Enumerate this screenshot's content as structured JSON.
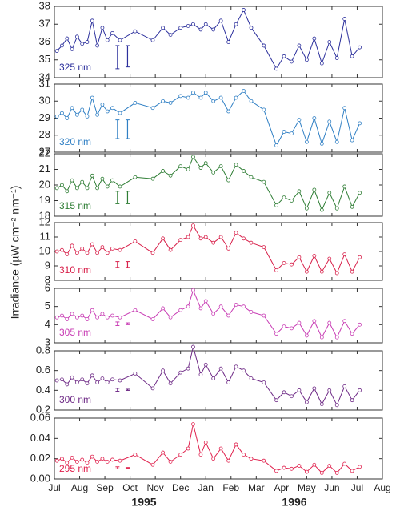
{
  "figure": {
    "ylabel": "Irradiance (µW cm⁻² nm⁻¹)",
    "year_labels": [
      "1995",
      "1996"
    ]
  },
  "chart_data": [
    {
      "type": "line",
      "label": "325 nm",
      "color": "#2b2f9c",
      "xlim": [
        0,
        13
      ],
      "ylim": [
        34,
        38
      ],
      "yticks": [
        34,
        35,
        36,
        37,
        38
      ],
      "x": [
        0.1,
        0.3,
        0.5,
        0.7,
        0.9,
        1.1,
        1.3,
        1.5,
        1.7,
        1.9,
        2.1,
        2.3,
        2.6,
        3.2,
        3.9,
        4.3,
        4.6,
        5.0,
        5.3,
        5.5,
        5.8,
        6.0,
        6.3,
        6.6,
        6.9,
        7.2,
        7.5,
        7.8,
        8.3,
        8.8,
        9.1,
        9.4,
        9.7,
        10.0,
        10.3,
        10.6,
        10.9,
        11.2,
        11.5,
        11.8,
        12.1
      ],
      "values": [
        35.5,
        35.8,
        36.2,
        35.6,
        36.3,
        35.9,
        36.0,
        37.2,
        35.8,
        36.8,
        36.1,
        36.5,
        36.1,
        36.6,
        36.1,
        36.8,
        36.4,
        36.8,
        36.9,
        37.0,
        36.7,
        37.0,
        36.7,
        37.2,
        36.0,
        37.0,
        37.8,
        36.8,
        35.8,
        34.5,
        35.2,
        34.9,
        35.8,
        35.0,
        36.2,
        34.8,
        36.0,
        35.1,
        37.3,
        35.2,
        35.7
      ],
      "error_bars": [
        {
          "x": 2.5,
          "y": 35.15,
          "err": 0.65
        },
        {
          "x": 2.9,
          "y": 35.2,
          "err": 0.6
        }
      ]
    },
    {
      "type": "line",
      "label": "320 nm",
      "color": "#2f7fc4",
      "xlim": [
        0,
        13
      ],
      "ylim": [
        27,
        31
      ],
      "yticks": [
        27,
        28,
        29,
        30,
        31
      ],
      "x": [
        0.1,
        0.3,
        0.5,
        0.7,
        0.9,
        1.1,
        1.3,
        1.5,
        1.7,
        1.9,
        2.1,
        2.3,
        2.6,
        3.2,
        3.9,
        4.3,
        4.6,
        5.0,
        5.3,
        5.5,
        5.8,
        6.0,
        6.3,
        6.6,
        6.9,
        7.2,
        7.5,
        7.8,
        8.3,
        8.8,
        9.1,
        9.4,
        9.7,
        10.0,
        10.3,
        10.6,
        10.9,
        11.2,
        11.5,
        11.8,
        12.1
      ],
      "values": [
        29.1,
        29.3,
        29.0,
        29.6,
        29.2,
        29.5,
        29.1,
        30.2,
        29.2,
        29.8,
        29.4,
        29.6,
        29.3,
        29.9,
        29.6,
        30.0,
        29.9,
        30.3,
        30.2,
        30.5,
        30.2,
        30.5,
        30.0,
        30.2,
        29.4,
        30.2,
        30.6,
        30.0,
        29.5,
        27.4,
        28.2,
        28.1,
        28.9,
        27.6,
        29.0,
        27.5,
        28.8,
        27.6,
        29.6,
        27.7,
        28.7
      ],
      "error_bars": [
        {
          "x": 2.5,
          "y": 28.35,
          "err": 0.55
        },
        {
          "x": 2.9,
          "y": 28.35,
          "err": 0.55
        }
      ]
    },
    {
      "type": "line",
      "label": "315 nm",
      "color": "#2e7d34",
      "xlim": [
        0,
        13
      ],
      "ylim": [
        18,
        22
      ],
      "yticks": [
        18,
        19,
        20,
        21,
        22
      ],
      "x": [
        0.1,
        0.3,
        0.5,
        0.7,
        0.9,
        1.1,
        1.3,
        1.5,
        1.7,
        1.9,
        2.1,
        2.3,
        2.6,
        3.2,
        3.9,
        4.3,
        4.6,
        5.0,
        5.3,
        5.5,
        5.8,
        6.0,
        6.3,
        6.6,
        6.9,
        7.2,
        7.5,
        7.8,
        8.3,
        8.8,
        9.1,
        9.4,
        9.7,
        10.0,
        10.3,
        10.6,
        10.9,
        11.2,
        11.5,
        11.8,
        12.1
      ],
      "values": [
        19.8,
        20.0,
        19.6,
        20.3,
        19.8,
        20.2,
        19.8,
        20.6,
        19.8,
        20.4,
        19.9,
        20.3,
        19.9,
        20.5,
        20.4,
        20.9,
        20.6,
        21.2,
        21.0,
        21.8,
        21.1,
        21.4,
        20.8,
        21.2,
        20.3,
        21.3,
        20.9,
        20.5,
        20.2,
        18.7,
        19.2,
        19.0,
        19.6,
        18.5,
        19.7,
        18.4,
        19.5,
        18.5,
        19.9,
        18.6,
        19.5
      ],
      "error_bars": [
        {
          "x": 2.5,
          "y": 19.2,
          "err": 0.4
        },
        {
          "x": 2.9,
          "y": 19.2,
          "err": 0.4
        }
      ]
    },
    {
      "type": "line",
      "label": "310 nm",
      "color": "#d8204a",
      "xlim": [
        0,
        13
      ],
      "ylim": [
        8,
        12
      ],
      "yticks": [
        8,
        9,
        10,
        11,
        12
      ],
      "x": [
        0.1,
        0.3,
        0.5,
        0.7,
        0.9,
        1.1,
        1.3,
        1.5,
        1.7,
        1.9,
        2.1,
        2.3,
        2.6,
        3.2,
        3.9,
        4.3,
        4.6,
        5.0,
        5.3,
        5.5,
        5.8,
        6.0,
        6.3,
        6.6,
        6.9,
        7.2,
        7.5,
        7.8,
        8.3,
        8.8,
        9.1,
        9.4,
        9.7,
        10.0,
        10.3,
        10.6,
        10.9,
        11.2,
        11.5,
        11.8,
        12.1
      ],
      "values": [
        10.0,
        10.1,
        9.8,
        10.4,
        9.9,
        10.2,
        9.9,
        10.5,
        9.9,
        10.3,
        9.9,
        10.2,
        10.1,
        10.7,
        9.9,
        10.9,
        10.1,
        10.8,
        11.0,
        11.8,
        10.9,
        11.0,
        10.6,
        11.0,
        10.2,
        11.3,
        10.9,
        10.6,
        10.3,
        8.7,
        9.2,
        9.1,
        9.6,
        8.6,
        9.7,
        8.6,
        9.5,
        8.5,
        9.8,
        8.6,
        9.6
      ],
      "error_bars": [
        {
          "x": 2.5,
          "y": 9.1,
          "err": 0.2
        },
        {
          "x": 2.9,
          "y": 9.1,
          "err": 0.2
        }
      ]
    },
    {
      "type": "line",
      "label": "305 nm",
      "color": "#c83cb4",
      "xlim": [
        0,
        13
      ],
      "ylim": [
        3,
        6
      ],
      "yticks": [
        3,
        4,
        5,
        6
      ],
      "x": [
        0.1,
        0.3,
        0.5,
        0.7,
        0.9,
        1.1,
        1.3,
        1.5,
        1.7,
        1.9,
        2.1,
        2.3,
        2.6,
        3.2,
        3.9,
        4.3,
        4.6,
        5.0,
        5.3,
        5.5,
        5.8,
        6.0,
        6.3,
        6.6,
        6.9,
        7.2,
        7.5,
        7.8,
        8.3,
        8.8,
        9.1,
        9.4,
        9.7,
        10.0,
        10.3,
        10.6,
        10.9,
        11.2,
        11.5,
        11.8,
        12.1
      ],
      "values": [
        4.4,
        4.5,
        4.3,
        4.6,
        4.4,
        4.5,
        4.3,
        4.8,
        4.4,
        4.6,
        4.4,
        4.5,
        4.4,
        4.8,
        4.3,
        4.9,
        4.4,
        4.8,
        5.0,
        5.9,
        4.9,
        5.3,
        4.6,
        5.0,
        4.5,
        5.1,
        5.0,
        4.7,
        4.5,
        3.5,
        3.9,
        3.8,
        4.1,
        3.4,
        4.2,
        3.3,
        4.1,
        3.3,
        4.2,
        3.5,
        4.0
      ],
      "error_bars": [
        {
          "x": 2.5,
          "y": 4.05,
          "err": 0.1
        },
        {
          "x": 2.9,
          "y": 4.05,
          "err": 0.05
        }
      ]
    },
    {
      "type": "line",
      "label": "300 nm",
      "color": "#6e2a86",
      "xlim": [
        0,
        13
      ],
      "ylim": [
        0.2,
        0.8
      ],
      "yticks": [
        0.2,
        0.4,
        0.6,
        0.8
      ],
      "x": [
        0.1,
        0.3,
        0.5,
        0.7,
        0.9,
        1.1,
        1.3,
        1.5,
        1.7,
        1.9,
        2.1,
        2.3,
        2.6,
        3.2,
        3.9,
        4.3,
        4.6,
        5.0,
        5.3,
        5.5,
        5.8,
        6.0,
        6.3,
        6.6,
        6.9,
        7.2,
        7.5,
        7.8,
        8.3,
        8.8,
        9.1,
        9.4,
        9.7,
        10.0,
        10.3,
        10.6,
        10.9,
        11.2,
        11.5,
        11.8,
        12.1
      ],
      "values": [
        0.5,
        0.51,
        0.46,
        0.53,
        0.48,
        0.51,
        0.47,
        0.55,
        0.48,
        0.52,
        0.48,
        0.51,
        0.5,
        0.57,
        0.42,
        0.6,
        0.47,
        0.58,
        0.62,
        0.84,
        0.56,
        0.66,
        0.52,
        0.62,
        0.48,
        0.64,
        0.6,
        0.52,
        0.48,
        0.3,
        0.38,
        0.34,
        0.4,
        0.28,
        0.42,
        0.26,
        0.4,
        0.25,
        0.44,
        0.3,
        0.4
      ],
      "error_bars": [
        {
          "x": 2.5,
          "y": 0.405,
          "err": 0.015
        },
        {
          "x": 2.9,
          "y": 0.405,
          "err": 0.006
        }
      ]
    },
    {
      "type": "line",
      "label": "295 nm",
      "color": "#e0224e",
      "xlim": [
        0,
        13
      ],
      "ylim": [
        0,
        0.06
      ],
      "yticks": [
        {
          "value": 0,
          "label": "0.00"
        },
        {
          "value": 0.02,
          "label": "0.02"
        },
        {
          "value": 0.04,
          "label": "0.04"
        },
        {
          "value": 0.06,
          "label": "0.06"
        }
      ],
      "xticks": [
        {
          "value": 0,
          "label": "Jul"
        },
        {
          "value": 1,
          "label": "Aug"
        },
        {
          "value": 2,
          "label": "Sep"
        },
        {
          "value": 3,
          "label": "Oct"
        },
        {
          "value": 4,
          "label": "Nov"
        },
        {
          "value": 5,
          "label": "Dec"
        },
        {
          "value": 6,
          "label": "Jan"
        },
        {
          "value": 7,
          "label": "Feb"
        },
        {
          "value": 8,
          "label": "Mar"
        },
        {
          "value": 9,
          "label": "Apr"
        },
        {
          "value": 10,
          "label": "May"
        },
        {
          "value": 11,
          "label": "Jun"
        },
        {
          "value": 12,
          "label": "Jul"
        },
        {
          "value": 13,
          "label": "Aug"
        }
      ],
      "x": [
        0.1,
        0.3,
        0.5,
        0.7,
        0.9,
        1.1,
        1.3,
        1.5,
        1.7,
        1.9,
        2.1,
        2.3,
        2.6,
        3.2,
        3.9,
        4.3,
        4.6,
        5.0,
        5.3,
        5.5,
        5.8,
        6.0,
        6.3,
        6.6,
        6.9,
        7.2,
        7.5,
        7.8,
        8.3,
        8.8,
        9.1,
        9.4,
        9.7,
        10.0,
        10.3,
        10.6,
        10.9,
        11.2,
        11.5,
        11.8,
        12.1
      ],
      "values": [
        0.018,
        0.02,
        0.016,
        0.021,
        0.017,
        0.019,
        0.016,
        0.022,
        0.017,
        0.02,
        0.017,
        0.019,
        0.018,
        0.024,
        0.014,
        0.026,
        0.017,
        0.024,
        0.03,
        0.054,
        0.024,
        0.036,
        0.02,
        0.03,
        0.018,
        0.034,
        0.024,
        0.02,
        0.018,
        0.008,
        0.011,
        0.01,
        0.013,
        0.007,
        0.014,
        0.006,
        0.013,
        0.006,
        0.015,
        0.008,
        0.012
      ],
      "error_bars": [
        {
          "x": 2.5,
          "y": 0.011,
          "err": 0.001
        },
        {
          "x": 2.9,
          "y": 0.011,
          "err": 0.0003
        }
      ]
    }
  ]
}
